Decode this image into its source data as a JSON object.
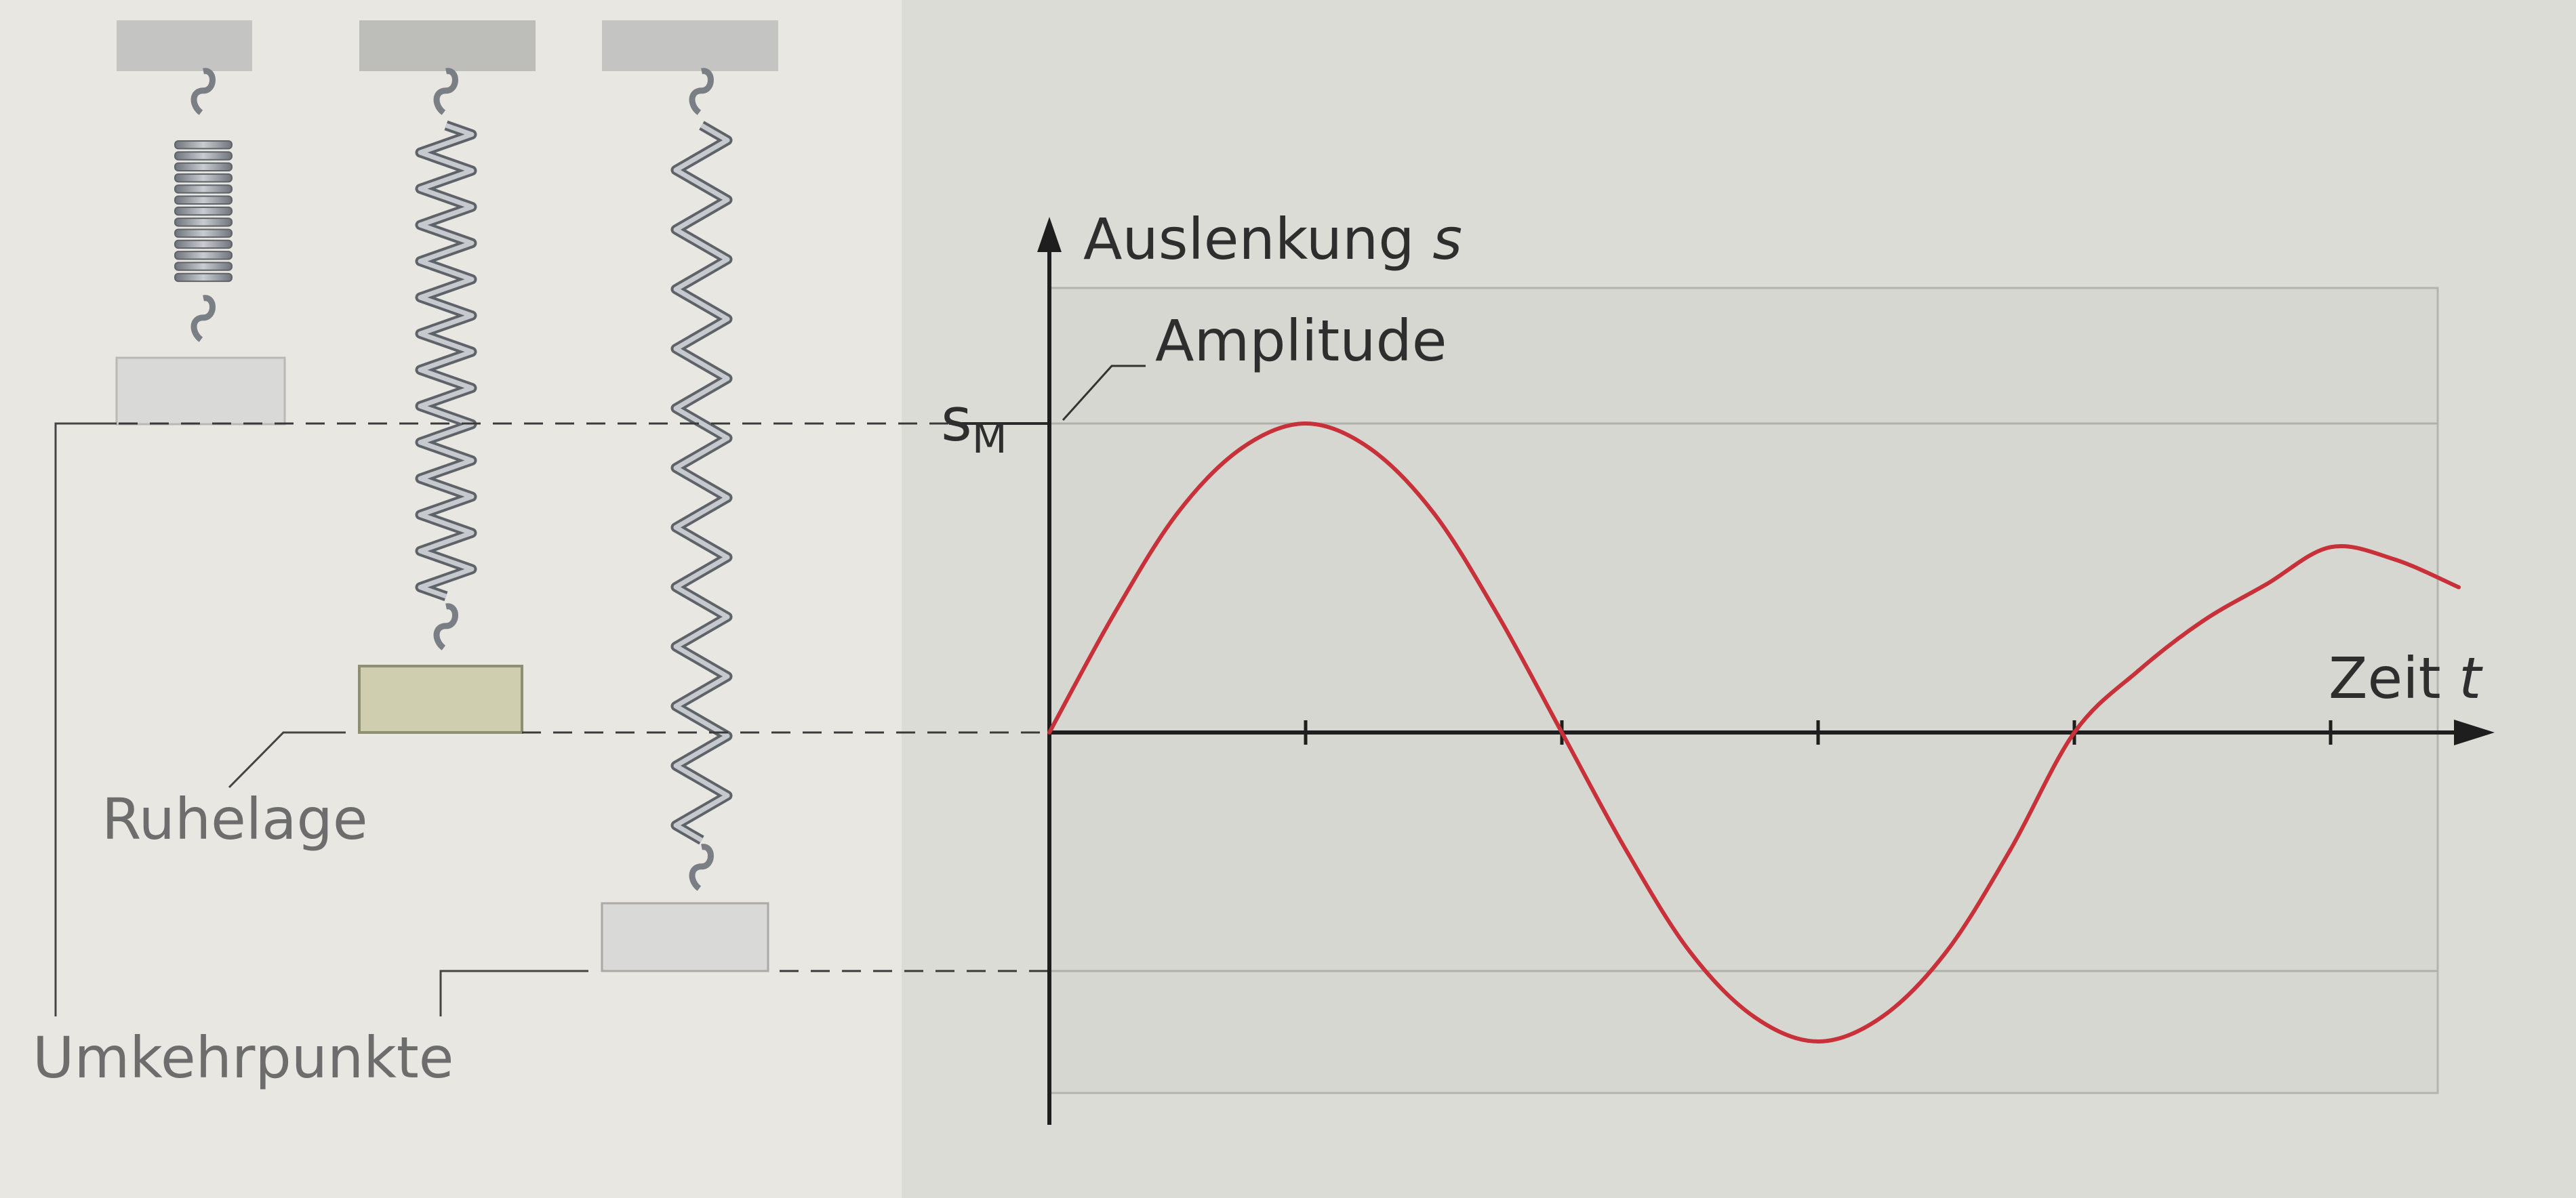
{
  "diagram": {
    "labels": {
      "y_axis": "Auslenkung",
      "y_axis_symbol": "s",
      "x_axis": "Zeit",
      "x_axis_symbol": "t",
      "amplitude": "Amplitude",
      "s_max_symbol": "s",
      "s_max_subscript": "M",
      "rest_position": "Ruhelage",
      "turning_points": "Umkehrpunkte"
    },
    "springs": [
      {
        "state": "compressed"
      },
      {
        "state": "rest"
      },
      {
        "state": "stretched"
      }
    ],
    "colors": {
      "curve": "#c8303a",
      "axis": "#1e1e1e",
      "dashed": "#3a3a3a",
      "mass_grey": "#d9d9d7",
      "mass_rest": "#cfcfb0",
      "spring": "#8a8f96",
      "panel": "#dcdcd7"
    }
  },
  "chart_data": {
    "type": "line",
    "x_ticks": [
      0,
      1,
      2,
      3,
      4,
      5
    ],
    "series": [
      {
        "x": [
          0,
          0.25,
          0.5,
          0.75,
          1,
          1.25,
          1.5,
          1.75,
          2,
          2.25,
          2.5,
          2.75,
          3,
          3.25,
          3.5,
          3.75,
          4,
          4.25,
          4.5,
          4.75,
          5,
          5.25,
          5.5
        ],
        "y": [
          0,
          0.38,
          0.71,
          0.92,
          1.0,
          0.92,
          0.71,
          0.38,
          0,
          -0.38,
          -0.71,
          -0.92,
          -1.0,
          -0.92,
          -0.71,
          -0.38,
          0,
          0.2,
          0.36,
          0.48,
          0.6,
          0.56,
          0.47
        ]
      }
    ],
    "ylim": [
      -1.3,
      1.5
    ],
    "xlim": [
      0,
      5.6
    ],
    "grid": true
  }
}
